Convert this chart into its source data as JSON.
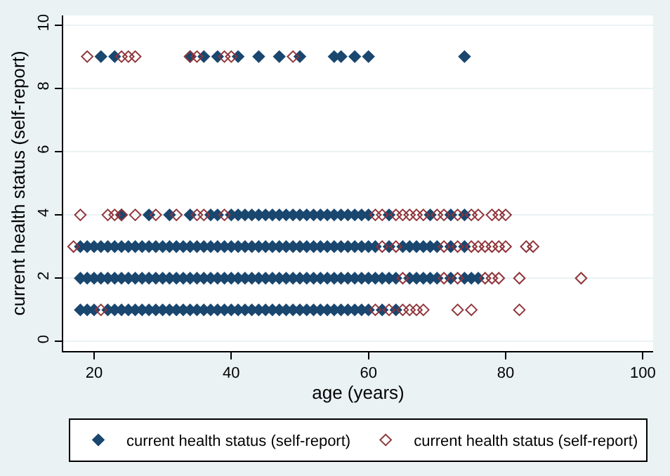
{
  "chart_data": {
    "type": "scatter",
    "xlabel": "age (years)",
    "ylabel": "current health status (self-report)",
    "xlim": [
      15.5,
      101.5
    ],
    "ylim": [
      -0.3,
      10.3
    ],
    "xticks": [
      20,
      40,
      60,
      80,
      100
    ],
    "yticks": [
      0,
      2,
      4,
      6,
      8,
      10
    ],
    "grid": "y",
    "legend": "bottom",
    "marker": "diamond",
    "series": [
      {
        "name": "current health status (self-report)",
        "color": "#1a476f",
        "x": [
          21,
          23,
          34,
          36,
          38,
          41,
          44,
          47,
          50,
          55,
          56,
          58,
          60,
          74,
          24,
          28,
          31,
          34,
          37,
          38,
          40,
          41,
          42,
          43,
          44,
          45,
          46,
          47,
          48,
          49,
          50,
          51,
          52,
          53,
          54,
          55,
          56,
          57,
          58,
          59,
          60,
          63,
          69,
          72,
          74,
          18,
          19,
          20,
          21,
          22,
          23,
          24,
          25,
          26,
          27,
          28,
          29,
          30,
          31,
          32,
          33,
          34,
          35,
          36,
          37,
          38,
          39,
          40,
          41,
          42,
          43,
          44,
          45,
          46,
          47,
          48,
          49,
          50,
          51,
          52,
          53,
          54,
          55,
          56,
          57,
          58,
          59,
          60,
          61,
          63,
          65,
          66,
          67,
          68,
          69,
          70,
          72,
          74,
          18,
          19,
          20,
          21,
          22,
          23,
          24,
          25,
          26,
          27,
          28,
          29,
          30,
          31,
          32,
          33,
          34,
          35,
          36,
          37,
          38,
          39,
          40,
          41,
          42,
          43,
          44,
          45,
          46,
          47,
          48,
          49,
          50,
          51,
          52,
          53,
          54,
          55,
          56,
          57,
          58,
          59,
          60,
          61,
          62,
          63,
          64,
          66,
          67,
          68,
          69,
          70,
          72,
          74,
          75,
          76,
          18,
          19,
          20,
          22,
          23,
          24,
          25,
          26,
          27,
          28,
          29,
          30,
          31,
          32,
          33,
          34,
          35,
          36,
          37,
          38,
          39,
          40,
          41,
          42,
          43,
          44,
          45,
          46,
          47,
          48,
          49,
          50,
          51,
          52,
          53,
          54,
          55,
          56,
          57,
          58,
          59,
          60,
          62,
          64
        ],
        "values": [
          9,
          9,
          9,
          9,
          9,
          9,
          9,
          9,
          9,
          9,
          9,
          9,
          9,
          9,
          4,
          4,
          4,
          4,
          4,
          4,
          4,
          4,
          4,
          4,
          4,
          4,
          4,
          4,
          4,
          4,
          4,
          4,
          4,
          4,
          4,
          4,
          4,
          4,
          4,
          4,
          4,
          4,
          4,
          4,
          4,
          3,
          3,
          3,
          3,
          3,
          3,
          3,
          3,
          3,
          3,
          3,
          3,
          3,
          3,
          3,
          3,
          3,
          3,
          3,
          3,
          3,
          3,
          3,
          3,
          3,
          3,
          3,
          3,
          3,
          3,
          3,
          3,
          3,
          3,
          3,
          3,
          3,
          3,
          3,
          3,
          3,
          3,
          3,
          3,
          3,
          3,
          3,
          3,
          3,
          3,
          3,
          3,
          3,
          2,
          2,
          2,
          2,
          2,
          2,
          2,
          2,
          2,
          2,
          2,
          2,
          2,
          2,
          2,
          2,
          2,
          2,
          2,
          2,
          2,
          2,
          2,
          2,
          2,
          2,
          2,
          2,
          2,
          2,
          2,
          2,
          2,
          2,
          2,
          2,
          2,
          2,
          2,
          2,
          2,
          2,
          2,
          2,
          2,
          2,
          2,
          2,
          2,
          2,
          2,
          2,
          2,
          2,
          2,
          2,
          1,
          1,
          1,
          1,
          1,
          1,
          1,
          1,
          1,
          1,
          1,
          1,
          1,
          1,
          1,
          1,
          1,
          1,
          1,
          1,
          1,
          1,
          1,
          1,
          1,
          1,
          1,
          1,
          1,
          1,
          1,
          1,
          1,
          1,
          1,
          1,
          1,
          1,
          1,
          1,
          1,
          1,
          1,
          1
        ]
      },
      {
        "name": "current health status (self-report)",
        "color": "#90353b",
        "x": [
          19,
          24,
          25,
          26,
          34,
          35,
          39,
          40,
          49,
          18,
          22,
          23,
          24,
          26,
          29,
          32,
          35,
          36,
          39,
          61,
          62,
          64,
          65,
          66,
          67,
          68,
          70,
          71,
          73,
          75,
          76,
          78,
          79,
          80,
          17,
          62,
          64,
          71,
          73,
          75,
          76,
          77,
          78,
          79,
          80,
          83,
          84,
          65,
          71,
          73,
          77,
          78,
          79,
          82,
          91,
          21,
          61,
          63,
          65,
          66,
          67,
          68,
          73,
          75,
          82
        ],
        "values": [
          9,
          9,
          9,
          9,
          9,
          9,
          9,
          9,
          9,
          4,
          4,
          4,
          4,
          4,
          4,
          4,
          4,
          4,
          4,
          4,
          4,
          4,
          4,
          4,
          4,
          4,
          4,
          4,
          4,
          4,
          4,
          4,
          4,
          4,
          3,
          3,
          3,
          3,
          3,
          3,
          3,
          3,
          3,
          3,
          3,
          3,
          3,
          2,
          2,
          2,
          2,
          2,
          2,
          2,
          2,
          1,
          1,
          1,
          1,
          1,
          1,
          1,
          1,
          1,
          1
        ]
      }
    ]
  }
}
